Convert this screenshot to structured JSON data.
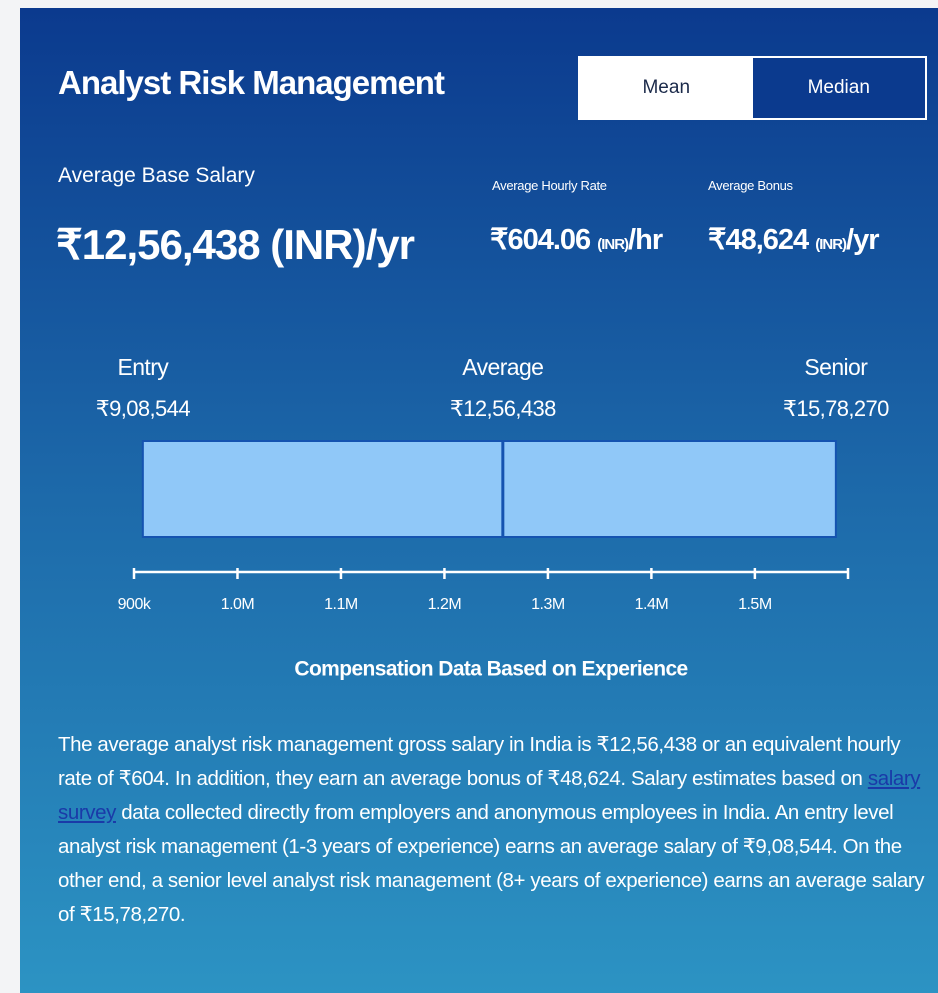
{
  "header": {
    "title": "Analyst Risk Management",
    "toggle": [
      "Mean",
      "Median"
    ]
  },
  "stats": {
    "base": {
      "label": "Average Base Salary",
      "amount": "₹12,56,438",
      "unit": "(INR)",
      "period": "/yr"
    },
    "hourly": {
      "label": "Average Hourly Rate",
      "amount": "₹604.06",
      "unit": "(INR)",
      "period": "/hr"
    },
    "bonus": {
      "label": "Average Bonus",
      "amount": "₹48,624",
      "unit": "(INR)",
      "period": "/yr"
    }
  },
  "range": {
    "points": [
      {
        "name": "Entry",
        "value": 908544,
        "label": "₹9,08,544"
      },
      {
        "name": "Average",
        "value": 1256438,
        "label": "₹12,56,438"
      },
      {
        "name": "Senior",
        "value": 1578270,
        "label": "₹15,78,270"
      }
    ],
    "xlim": [
      900000,
      1590000
    ],
    "xticks": [
      {
        "value": 900000,
        "label": "900k"
      },
      {
        "value": 1000000,
        "label": "1.0M"
      },
      {
        "value": 1100000,
        "label": "1.1M"
      },
      {
        "value": 1200000,
        "label": "1.2M"
      },
      {
        "value": 1300000,
        "label": "1.3M"
      },
      {
        "value": 1400000,
        "label": "1.4M"
      },
      {
        "value": 1500000,
        "label": "1.5M"
      }
    ],
    "caption": "Compensation Data Based on Experience"
  },
  "paragraph": {
    "before": "The average analyst risk management gross salary in India is ₹12,56,438 or an equivalent hourly rate of ₹604. In addition, they earn an average bonus of ₹48,624. Salary estimates based on ",
    "link": "salary survey",
    "after": " data collected directly from employers and anonymous employees in India. An entry level analyst risk management (1-3 years of experience) earns an average salary of ₹9,08,544. On the other end, a senior level analyst risk management (8+ years of experience) earns an average salary of ₹15,78,270."
  }
}
